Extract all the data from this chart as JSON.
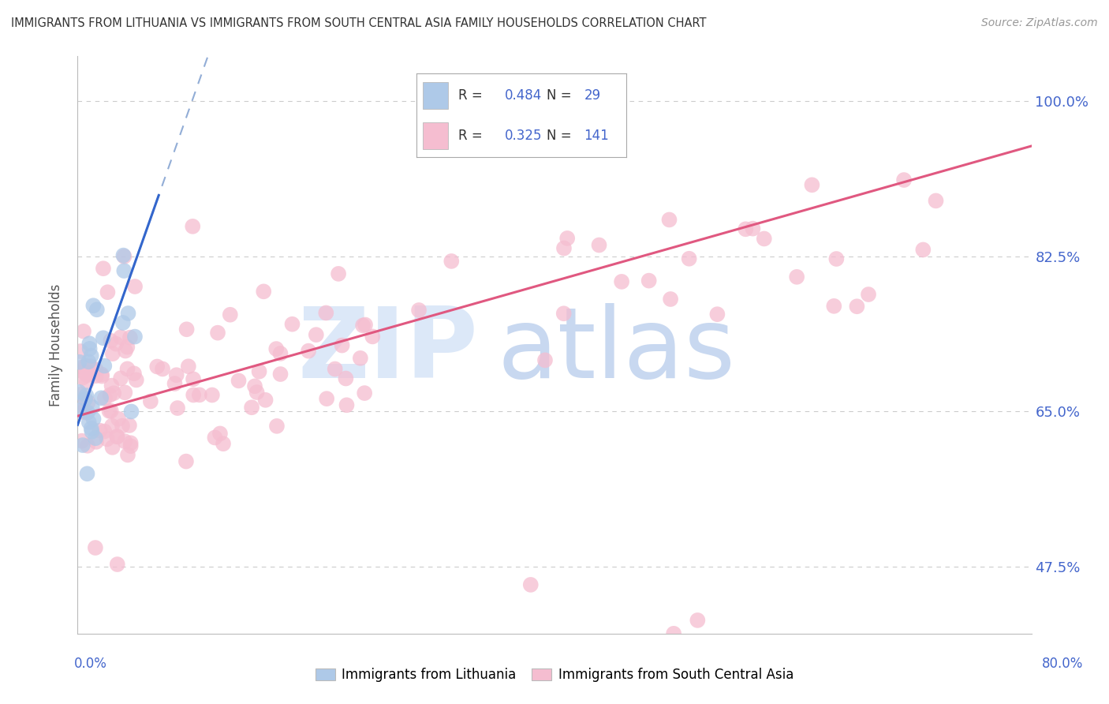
{
  "title": "IMMIGRANTS FROM LITHUANIA VS IMMIGRANTS FROM SOUTH CENTRAL ASIA FAMILY HOUSEHOLDS CORRELATION CHART",
  "source": "Source: ZipAtlas.com",
  "ylabel": "Family Households",
  "yticks": [
    "47.5%",
    "65.0%",
    "82.5%",
    "100.0%"
  ],
  "ytick_values": [
    0.475,
    0.65,
    0.825,
    1.0
  ],
  "xlim": [
    0.0,
    0.8
  ],
  "ylim": [
    0.4,
    1.05
  ],
  "legend_blue_r": "0.484",
  "legend_blue_n": "29",
  "legend_pink_r": "0.325",
  "legend_pink_n": "141",
  "blue_color": "#aec9e8",
  "pink_color": "#f5bdd0",
  "blue_line_color": "#3366cc",
  "pink_line_color": "#e05880",
  "watermark_zip_color": "#dce8f8",
  "watermark_atlas_color": "#c8d8f0",
  "axis_tick_color": "#4466cc",
  "grid_color": "#cccccc"
}
